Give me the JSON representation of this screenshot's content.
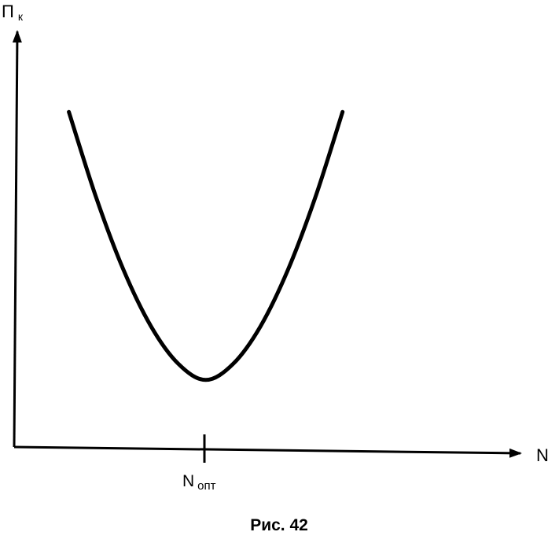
{
  "chart_data": {
    "type": "line",
    "title": "",
    "caption": "Рис. 42",
    "y_axis": {
      "label_main": "П",
      "label_sub": "к",
      "ticks": []
    },
    "x_axis": {
      "label": "N",
      "ticks": [
        {
          "main": "N",
          "sub": "опт",
          "x": 0
        }
      ]
    },
    "series": [
      {
        "curve": "U-shaped",
        "x": [
          -1.0,
          -0.8,
          -0.6,
          -0.4,
          -0.2,
          0.0,
          0.2,
          0.4,
          0.6,
          0.8,
          1.0
        ],
        "y": [
          1.0,
          0.68,
          0.41,
          0.2,
          0.06,
          0.0,
          0.06,
          0.2,
          0.41,
          0.68,
          1.0
        ]
      }
    ],
    "xlim": [
      -1.4,
      2.3
    ],
    "ylim": [
      -0.25,
      1.3
    ],
    "grid": false,
    "legend": "none",
    "colors": {
      "line": "#000000",
      "background": "#ffffff"
    }
  }
}
